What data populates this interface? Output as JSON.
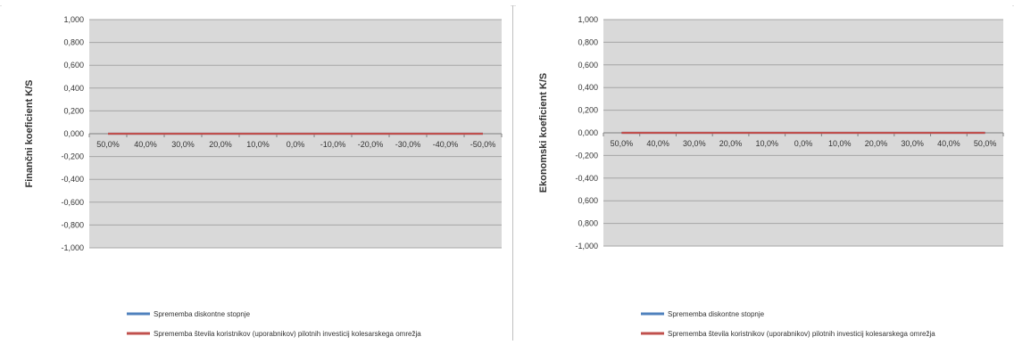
{
  "colors": {
    "plot_background": "#d9d9d9",
    "gridline": "#a6a6a6",
    "series_1": "#4f81bd",
    "series_2": "#c0504d"
  },
  "chart_data": [
    {
      "type": "line",
      "ylabel": "Finančni koeficient K/S",
      "xlabel": "",
      "ylim": [
        -1,
        1
      ],
      "yticks": [
        "1,000",
        "0,800",
        "0,600",
        "0,400",
        "0,200",
        "0,000",
        "-0,200",
        "-0,400",
        "-0,600",
        "-0,800",
        "-1,000"
      ],
      "categories": [
        "50,0%",
        "40,0%",
        "30,0%",
        "20,0%",
        "10,0%",
        "0,0%",
        "-10,0%",
        "-20,0%",
        "-30,0%",
        "-40,0%",
        "-50,0%"
      ],
      "grid": true,
      "legend_position": "bottom",
      "series": [
        {
          "name": "Sprememba diskontne stopnje",
          "values": [
            0,
            0,
            0,
            0,
            0,
            0,
            0,
            0,
            0,
            0,
            0
          ]
        },
        {
          "name": "Sprememba števila koristnikov (uporabnikov) pilotnih investicij kolesarskega omrežja",
          "values": [
            0,
            0,
            0,
            0,
            0,
            0,
            0,
            0,
            0,
            0,
            0
          ]
        }
      ]
    },
    {
      "type": "line",
      "ylabel": "Ekonomski koeficient K/S",
      "xlabel": "",
      "ylim": [
        -1,
        1
      ],
      "yticks": [
        "1,000",
        "0,800",
        "0,600",
        "0,400",
        "0,200",
        "0,000",
        "-0,200",
        "-0,400",
        "0,600",
        "0,800",
        "-1,000"
      ],
      "categories": [
        "50,0%",
        "40,0%",
        "30,0%",
        "20,0%",
        "10,0%",
        "0,0%",
        "10,0%",
        "20,0%",
        "30,0%",
        "40,0%",
        "50,0%"
      ],
      "grid": true,
      "legend_position": "bottom",
      "series": [
        {
          "name": "Sprememba diskontne stopnje",
          "values": [
            0,
            0,
            0,
            0,
            0,
            0,
            0,
            0,
            0,
            0,
            0
          ]
        },
        {
          "name": "Sprememba števila koristnikov (uporabnikov) pilotnih investicij kolesarskega omrežja",
          "values": [
            0,
            0,
            0,
            0,
            0,
            0,
            0,
            0,
            0,
            0,
            0
          ]
        }
      ]
    }
  ]
}
